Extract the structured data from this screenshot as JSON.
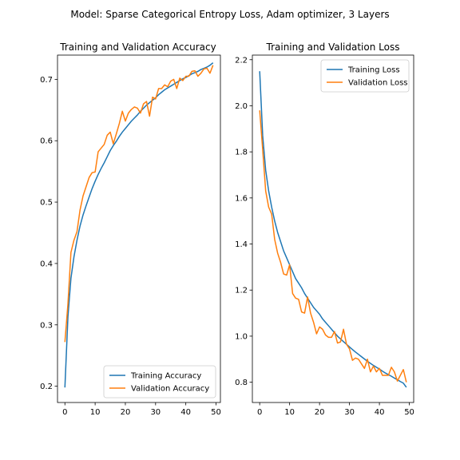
{
  "figure_title": "Model: Sparse Categorical Entropy Loss, Adam optimizer, 3 Layers",
  "colors": {
    "training": "#1f77b4",
    "validation": "#ff7f0e",
    "axes": "#000000",
    "legend_border": "#cccccc"
  },
  "chart_data": [
    {
      "type": "line",
      "title": "Training and Validation Accuracy",
      "xlabel": "",
      "ylabel": "",
      "xlim": [
        -2.45,
        51.45
      ],
      "ylim": [
        0.1735,
        0.7395
      ],
      "xticks": [
        0,
        10,
        20,
        30,
        40,
        50
      ],
      "yticks": [
        0.2,
        0.3,
        0.4,
        0.5,
        0.6,
        0.7
      ],
      "ytick_labels": [
        "0.2",
        "0.3",
        "0.4",
        "0.5",
        "0.6",
        "0.7"
      ],
      "legend_position": "lower right",
      "grid": false,
      "x": [
        0,
        1,
        2,
        3,
        4,
        5,
        6,
        7,
        8,
        9,
        10,
        11,
        12,
        13,
        14,
        15,
        16,
        17,
        18,
        19,
        20,
        21,
        22,
        23,
        24,
        25,
        26,
        27,
        28,
        29,
        30,
        31,
        32,
        33,
        34,
        35,
        36,
        37,
        38,
        39,
        40,
        41,
        42,
        43,
        44,
        45,
        46,
        47,
        48,
        49
      ],
      "series": [
        {
          "name": "Training Accuracy",
          "color": "#1f77b4",
          "values": [
            0.198,
            0.313,
            0.376,
            0.411,
            0.438,
            0.461,
            0.479,
            0.494,
            0.508,
            0.522,
            0.534,
            0.545,
            0.555,
            0.564,
            0.574,
            0.584,
            0.592,
            0.599,
            0.607,
            0.614,
            0.62,
            0.626,
            0.632,
            0.637,
            0.642,
            0.648,
            0.653,
            0.658,
            0.662,
            0.666,
            0.67,
            0.675,
            0.679,
            0.683,
            0.686,
            0.689,
            0.692,
            0.695,
            0.698,
            0.701,
            0.703,
            0.706,
            0.709,
            0.711,
            0.713,
            0.716,
            0.718,
            0.72,
            0.723,
            0.727
          ]
        },
        {
          "name": "Validation Accuracy",
          "color": "#ff7f0e",
          "values": [
            0.272,
            0.334,
            0.418,
            0.438,
            0.452,
            0.487,
            0.51,
            0.525,
            0.54,
            0.548,
            0.549,
            0.582,
            0.588,
            0.594,
            0.609,
            0.614,
            0.595,
            0.611,
            0.628,
            0.648,
            0.632,
            0.645,
            0.651,
            0.655,
            0.653,
            0.645,
            0.66,
            0.664,
            0.64,
            0.671,
            0.668,
            0.685,
            0.685,
            0.691,
            0.688,
            0.697,
            0.7,
            0.685,
            0.702,
            0.698,
            0.705,
            0.705,
            0.713,
            0.714,
            0.705,
            0.71,
            0.717,
            0.718,
            0.71,
            0.723
          ]
        }
      ]
    },
    {
      "type": "line",
      "title": "Training and Validation Loss",
      "xlabel": "",
      "ylabel": "",
      "xlim": [
        -2.45,
        51.45
      ],
      "ylim": [
        0.712,
        2.22
      ],
      "xticks": [
        0,
        10,
        20,
        30,
        40,
        50
      ],
      "yticks": [
        0.8,
        1.0,
        1.2,
        1.4,
        1.6,
        1.8,
        2.0,
        2.2
      ],
      "ytick_labels": [
        "0.8",
        "1.0",
        "1.2",
        "1.4",
        "1.6",
        "1.8",
        "2.0",
        "2.2"
      ],
      "legend_position": "upper right",
      "grid": false,
      "x": [
        0,
        1,
        2,
        3,
        4,
        5,
        6,
        7,
        8,
        9,
        10,
        11,
        12,
        13,
        14,
        15,
        16,
        17,
        18,
        19,
        20,
        21,
        22,
        23,
        24,
        25,
        26,
        27,
        28,
        29,
        30,
        31,
        32,
        33,
        34,
        35,
        36,
        37,
        38,
        39,
        40,
        41,
        42,
        43,
        44,
        45,
        46,
        47,
        48,
        49
      ],
      "series": [
        {
          "name": "Training Loss",
          "color": "#1f77b4",
          "values": [
            2.15,
            1.87,
            1.72,
            1.63,
            1.56,
            1.5,
            1.45,
            1.41,
            1.37,
            1.34,
            1.31,
            1.28,
            1.25,
            1.23,
            1.21,
            1.185,
            1.165,
            1.145,
            1.125,
            1.11,
            1.095,
            1.075,
            1.06,
            1.045,
            1.03,
            1.015,
            1.0,
            0.988,
            0.976,
            0.965,
            0.953,
            0.942,
            0.931,
            0.921,
            0.911,
            0.901,
            0.891,
            0.882,
            0.873,
            0.865,
            0.857,
            0.848,
            0.84,
            0.833,
            0.826,
            0.818,
            0.811,
            0.803,
            0.796,
            0.778
          ]
        },
        {
          "name": "Validation Loss",
          "color": "#ff7f0e",
          "values": [
            1.98,
            1.81,
            1.63,
            1.56,
            1.53,
            1.42,
            1.36,
            1.32,
            1.27,
            1.265,
            1.31,
            1.185,
            1.165,
            1.16,
            1.105,
            1.1,
            1.17,
            1.1,
            1.06,
            1.01,
            1.04,
            1.03,
            1.005,
            0.995,
            0.995,
            1.02,
            0.97,
            0.975,
            1.03,
            0.965,
            0.945,
            0.895,
            0.905,
            0.9,
            0.88,
            0.86,
            0.9,
            0.845,
            0.87,
            0.845,
            0.86,
            0.83,
            0.83,
            0.83,
            0.865,
            0.845,
            0.805,
            0.83,
            0.855,
            0.8
          ]
        }
      ]
    }
  ]
}
